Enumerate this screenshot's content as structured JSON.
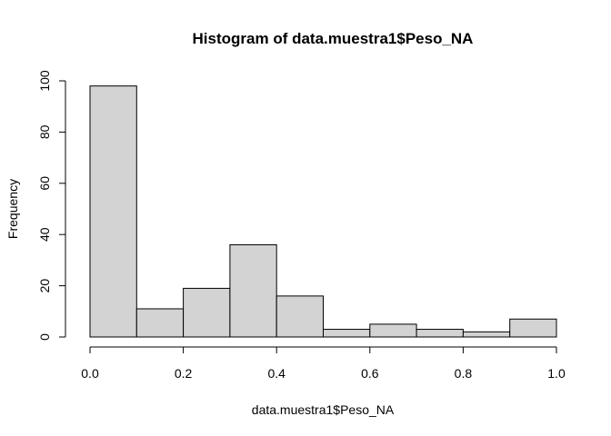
{
  "chart_data": {
    "type": "bar",
    "subtype": "histogram",
    "title": "Histogram of data.muestra1$Peso_NA",
    "xlabel": "data.muestra1$Peso_NA",
    "ylabel": "Frequency",
    "bin_edges": [
      0.0,
      0.1,
      0.2,
      0.3,
      0.4,
      0.5,
      0.6,
      0.7,
      0.8,
      0.9,
      1.0
    ],
    "values": [
      98,
      11,
      19,
      36,
      16,
      3,
      5,
      3,
      2,
      7
    ],
    "xlim": [
      0.0,
      1.0
    ],
    "ylim": [
      0,
      100
    ],
    "x_ticks": [
      "0.0",
      "0.2",
      "0.4",
      "0.6",
      "0.8",
      "1.0"
    ],
    "y_ticks": [
      "0",
      "20",
      "40",
      "60",
      "80",
      "100"
    ],
    "grid": false,
    "bar_fill": "#d3d3d3",
    "bar_stroke": "#000000"
  }
}
